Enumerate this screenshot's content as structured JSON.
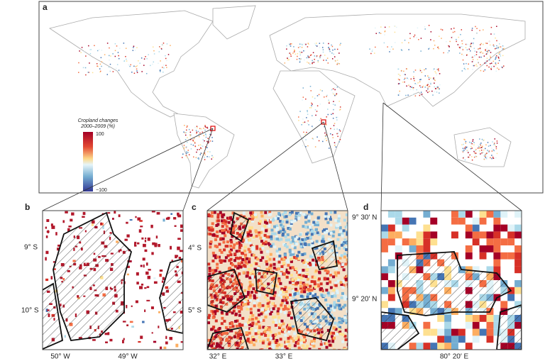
{
  "panel_a": {
    "label": "a",
    "legend": {
      "title": [
        "Cropland changes",
        "2000–2009 (%)"
      ],
      "max": "100",
      "min": "−100"
    }
  },
  "panel_b": {
    "label": "b",
    "y_labels": [
      "9° S",
      "10° S"
    ],
    "x_labels": [
      "50° W",
      "49° W"
    ]
  },
  "panel_c": {
    "label": "c",
    "y_labels": [
      "4° S",
      "5° S"
    ],
    "x_labels": [
      "32° E",
      "33° E"
    ]
  },
  "panel_d": {
    "label": "d",
    "y_labels": [
      "9° 30′ N",
      "9° 20′ N"
    ],
    "x_labels": [
      "80° 20′ E"
    ]
  }
}
